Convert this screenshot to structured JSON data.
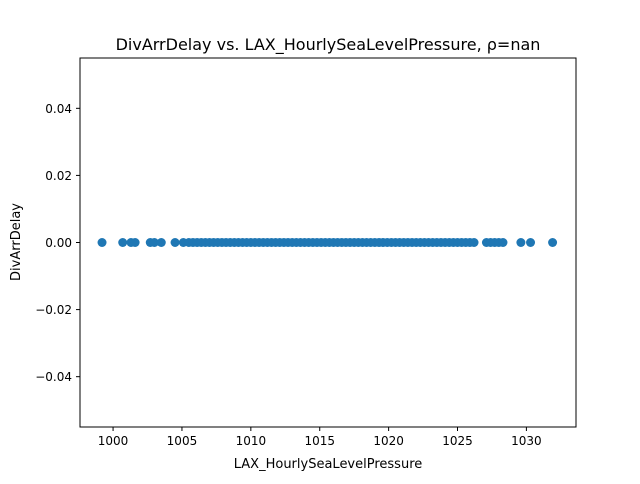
{
  "chart_data": {
    "type": "scatter",
    "title": "DivArrDelay vs. LAX_HourlySeaLevelPressure, ρ=nan",
    "xlabel": "LAX_HourlySeaLevelPressure",
    "ylabel": "DivArrDelay",
    "xlim": [
      997.6,
      1033.6
    ],
    "ylim": [
      -0.055,
      0.055
    ],
    "x_ticks": [
      1000,
      1005,
      1010,
      1015,
      1020,
      1025,
      1030
    ],
    "x_tick_labels": [
      "1000",
      "1005",
      "1010",
      "1015",
      "1020",
      "1025",
      "1030"
    ],
    "y_ticks": [
      0.04,
      0.02,
      0.0,
      -0.02,
      -0.04
    ],
    "y_tick_labels": [
      "0.04",
      "0.02",
      "0.00",
      "−0.02",
      "−0.04"
    ],
    "grid": false,
    "marker_color": "#1f77b4",
    "points": {
      "x": [
        999.2,
        1000.7,
        1001.3,
        1001.6,
        1002.7,
        1003.0,
        1003.5,
        1004.5,
        1005.1,
        1005.5,
        1005.8,
        1006.1,
        1006.4,
        1006.7,
        1007.0,
        1007.3,
        1007.6,
        1007.9,
        1008.2,
        1008.5,
        1008.8,
        1009.1,
        1009.4,
        1009.7,
        1010.0,
        1010.3,
        1010.6,
        1010.9,
        1011.2,
        1011.5,
        1011.8,
        1012.1,
        1012.4,
        1012.7,
        1013.0,
        1013.3,
        1013.6,
        1013.9,
        1014.2,
        1014.5,
        1014.8,
        1015.1,
        1015.4,
        1015.7,
        1016.0,
        1016.3,
        1016.6,
        1016.9,
        1017.2,
        1017.5,
        1017.8,
        1018.1,
        1018.4,
        1018.7,
        1019.0,
        1019.3,
        1019.6,
        1019.9,
        1020.2,
        1020.5,
        1020.8,
        1021.1,
        1021.4,
        1021.7,
        1022.0,
        1022.3,
        1022.6,
        1022.9,
        1023.2,
        1023.5,
        1023.8,
        1024.1,
        1024.4,
        1024.7,
        1025.0,
        1025.3,
        1025.6,
        1025.9,
        1026.2,
        1027.1,
        1027.4,
        1027.7,
        1028.0,
        1028.3,
        1029.6,
        1030.3,
        1031.9
      ],
      "y": [
        0,
        0,
        0,
        0,
        0,
        0,
        0,
        0,
        0,
        0,
        0,
        0,
        0,
        0,
        0,
        0,
        0,
        0,
        0,
        0,
        0,
        0,
        0,
        0,
        0,
        0,
        0,
        0,
        0,
        0,
        0,
        0,
        0,
        0,
        0,
        0,
        0,
        0,
        0,
        0,
        0,
        0,
        0,
        0,
        0,
        0,
        0,
        0,
        0,
        0,
        0,
        0,
        0,
        0,
        0,
        0,
        0,
        0,
        0,
        0,
        0,
        0,
        0,
        0,
        0,
        0,
        0,
        0,
        0,
        0,
        0,
        0,
        0,
        0,
        0,
        0,
        0,
        0,
        0,
        0,
        0,
        0,
        0,
        0,
        0,
        0,
        0
      ]
    }
  }
}
